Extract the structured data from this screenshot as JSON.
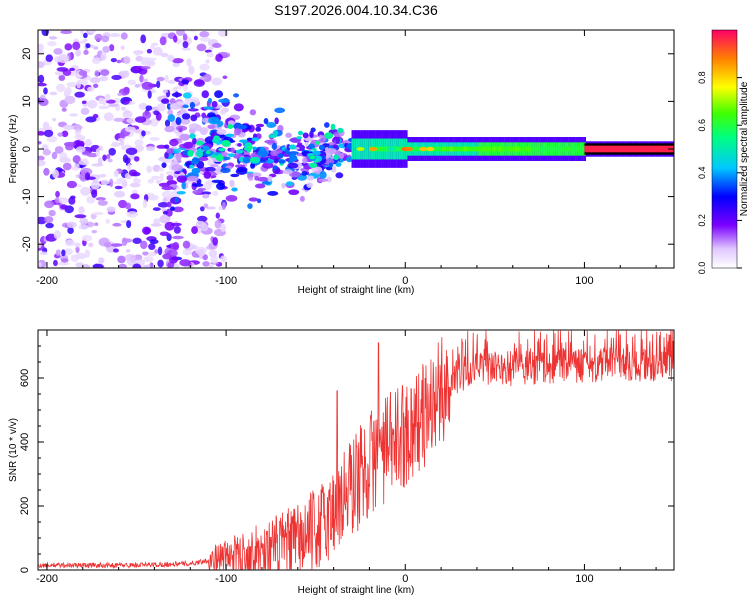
{
  "title": "S197.2026.004.10.34.C36",
  "chart_data": [
    {
      "type": "heatmap",
      "name": "spectrogram",
      "xlabel": "Height of straight line (km)",
      "ylabel": "Frequency (Hz)",
      "xlim": [
        -205,
        150
      ],
      "ylim": [
        -25,
        25
      ],
      "x_ticks": [
        -200,
        -100,
        0,
        100
      ],
      "y_ticks": [
        -20,
        -10,
        0,
        10,
        20
      ],
      "colorbar": {
        "label": "Normalized spectral amplitude",
        "range": [
          0,
          1
        ],
        "ticks": [
          0.0,
          0.2,
          0.4,
          0.6,
          0.8
        ],
        "tick_labels": [
          "0.0",
          "0.2",
          "0.4",
          "0.6",
          "0.8"
        ]
      },
      "features": {
        "noise_region_x": [
          -205,
          -110
        ],
        "transition_region_x": [
          -130,
          -30
        ],
        "narrow_band_x": [
          -30,
          150
        ],
        "band_center_freq": 0,
        "high_amplitude_band_x": [
          100,
          150
        ]
      }
    },
    {
      "type": "line",
      "name": "snr",
      "xlabel": "Height of straight line (km)",
      "ylabel": "SNR (10 * v/v)",
      "xlim": [
        -205,
        150
      ],
      "ylim": [
        0,
        750
      ],
      "x_ticks": [
        -200,
        -100,
        0,
        100
      ],
      "y_ticks": [
        0,
        200,
        400,
        600
      ],
      "color": "#ee3333",
      "envelope": {
        "x": [
          -205,
          -150,
          -120,
          -100,
          -80,
          -60,
          -50,
          -40,
          -30,
          -20,
          -10,
          0,
          10,
          20,
          30,
          40,
          60,
          80,
          100,
          120,
          150
        ],
        "y": [
          15,
          15,
          20,
          40,
          60,
          90,
          120,
          180,
          260,
          330,
          380,
          430,
          480,
          560,
          610,
          625,
          630,
          635,
          640,
          640,
          645
        ]
      },
      "peaks": [
        {
          "x": -38,
          "y": 560
        },
        {
          "x": -15,
          "y": 710
        },
        {
          "x": 32,
          "y": 710
        },
        {
          "x": 120,
          "y": 735
        }
      ]
    }
  ]
}
